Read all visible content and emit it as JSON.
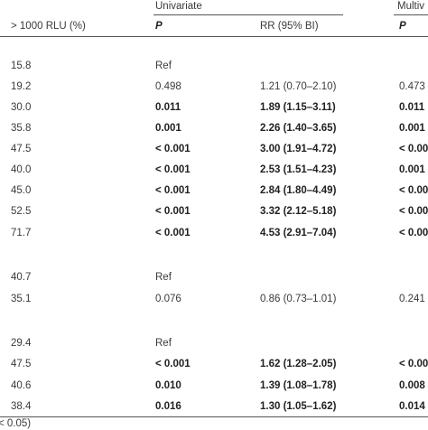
{
  "table": {
    "group_headers": [
      "Univariate",
      "Multiv"
    ],
    "columns": [
      "> 1000 RLU (%)",
      "P",
      "RR (95% BI)",
      "P"
    ],
    "rows": [
      [
        "15.8",
        "Ref"
      ],
      [
        "19.2",
        "0.498",
        "1.21 (0.70–2.10)",
        "0.473"
      ],
      [
        "30.0",
        "0.011",
        "1.89 (1.15–3.11)",
        "0.011"
      ],
      [
        "35.8",
        "0.001",
        "2.26 (1.40–3.65)",
        "0.001"
      ],
      [
        "47.5",
        "< 0.001",
        "3.00 (1.91–4.72)",
        "< 0.00"
      ],
      [
        "40.0",
        "< 0.001",
        "2.53 (1.51–4.23)",
        "0.001"
      ],
      [
        "45.0",
        "< 0.001",
        "2.84 (1.80–4.49)",
        "< 0.00"
      ],
      [
        "52.5",
        "< 0.001",
        "3.32 (2.12–5.18)",
        "< 0.00"
      ],
      [
        "71.7",
        "< 0.001",
        "4.53 (2.91–7.04)",
        "< 0.00"
      ],
      [
        "40.7",
        "Ref"
      ],
      [
        "35.1",
        "0.076",
        "0.86 (0.73–1.01)",
        "0.241"
      ],
      [
        "29.4",
        "Ref"
      ],
      [
        "47.5",
        "< 0.001",
        "1.62 (1.28–2.05)",
        "< 0.00"
      ],
      [
        "40.6",
        "0.010",
        "1.39 (1.08–1.78)",
        "0.008"
      ],
      [
        "38.4",
        "0.016",
        "1.30 (1.05–1.62)",
        "0.014"
      ]
    ],
    "footnote": "< 0.05)"
  }
}
